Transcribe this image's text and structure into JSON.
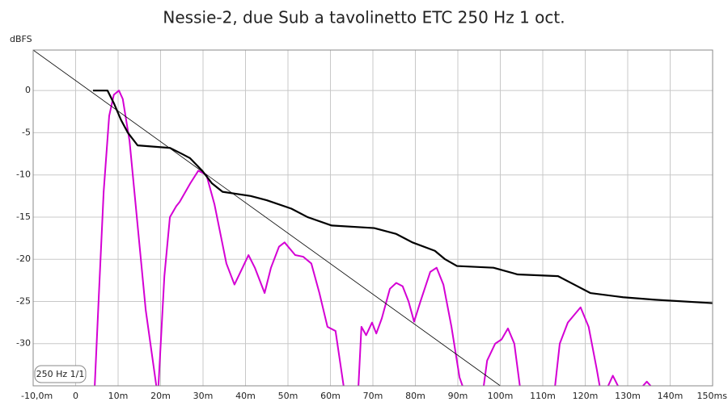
{
  "chart_data": {
    "type": "line",
    "title": "Nessie-2, due Sub a tavolinetto ETC 250 Hz 1 oct.",
    "y_label": "dBFS",
    "annotation": "250 Hz 1/1",
    "xlim": [
      -10,
      150
    ],
    "ylim": [
      -35,
      4.8
    ],
    "xticks": [
      {
        "value": -10,
        "label": "-10,0m"
      },
      0,
      {
        "value": 10,
        "label": "10m"
      },
      {
        "value": 20,
        "label": "20m"
      },
      {
        "value": 30,
        "label": "30m"
      },
      {
        "value": 40,
        "label": "40m"
      },
      {
        "value": 50,
        "label": "50m"
      },
      {
        "value": 60,
        "label": "60m"
      },
      {
        "value": 70,
        "label": "70m"
      },
      {
        "value": 80,
        "label": "80m"
      },
      {
        "value": 90,
        "label": "90m"
      },
      {
        "value": 100,
        "label": "100m"
      },
      {
        "value": 110,
        "label": "110m"
      },
      {
        "value": 120,
        "label": "120m"
      },
      {
        "value": 130,
        "label": "130m"
      },
      {
        "value": 140,
        "label": "140m"
      },
      {
        "value": 150,
        "label": "150ms"
      }
    ],
    "yticks": [
      0,
      -5,
      -10,
      -15,
      -20,
      -25,
      -30
    ],
    "grid": true,
    "series": [
      {
        "color": "#d400d4",
        "line_width": 2,
        "x": [
          4.5,
          5.4,
          6.6,
          7.9,
          9.0,
          10.2,
          11.1,
          12.7,
          14.6,
          16.5,
          19.0,
          null,
          19.5,
          20.9,
          22.2,
          23.7,
          24.5,
          27.0,
          28.9,
          30.8,
          32.7,
          35.5,
          37.4,
          39.3,
          40.7,
          42.2,
          44.5,
          46.0,
          47.9,
          49.2,
          51.7,
          53.6,
          55.5,
          57.4,
          59.3,
          61.2,
          63.1,
          null,
          66.6,
          67.3,
          68.4,
          69.8,
          70.8,
          72.1,
          74.0,
          75.5,
          77.0,
          78.4,
          79.7,
          81.2,
          83.5,
          85.0,
          86.6,
          88.5,
          90.4,
          91.1,
          null,
          96.1,
          96.9,
          98.8,
          100.3,
          101.8,
          103.3,
          104.6,
          null,
          112.9,
          114.0,
          115.9,
          118.9,
          120.8,
          122.7,
          123.4,
          null,
          125.4,
          126.5,
          127.7,
          null,
          133.6,
          134.5,
          135.4
        ],
        "values": [
          -35,
          -25,
          -12,
          -3,
          -0.5,
          0,
          -1,
          -6,
          -16,
          -26,
          -35,
          null,
          -35,
          -22,
          -15,
          -13.7,
          -13.2,
          -11,
          -9.5,
          -10,
          -13.5,
          -20.5,
          -23,
          -21,
          -19.5,
          -21,
          -24,
          -21,
          -18.5,
          -18,
          -19.5,
          -19.7,
          -20.5,
          -24,
          -28,
          -28.5,
          -35,
          null,
          -35,
          -28,
          -29,
          -27.5,
          -28.8,
          -27,
          -23.5,
          -22.8,
          -23.2,
          -25,
          -27.4,
          -25,
          -21.5,
          -21,
          -23,
          -28,
          -34,
          -35,
          null,
          -35,
          -32,
          -30,
          -29.5,
          -28.2,
          -30,
          -35,
          null,
          -35,
          -30,
          -27.5,
          -25.7,
          -28,
          -33,
          -35,
          null,
          -35,
          -33.8,
          -35,
          null,
          -35,
          -34.5,
          -35
        ]
      },
      {
        "color": "#000000",
        "line_width": 2.2,
        "x": [
          4.1,
          7.5,
          9.0,
          10.7,
          12.3,
          14.6,
          22.2,
          25.0,
          26.9,
          29.8,
          32.1,
          34.6,
          41.2,
          45.0,
          50.8,
          54.6,
          60.3,
          70.3,
          75.5,
          79.3,
          84.6,
          87.0,
          89.8,
          98.4,
          104.1,
          113.6,
          117.4,
          121.2,
          128.9,
          136.5,
          150.0
        ],
        "values": [
          0,
          0,
          -1.5,
          -3.5,
          -5,
          -6.5,
          -6.8,
          -7.5,
          -8,
          -9.5,
          -11,
          -12,
          -12.5,
          -13,
          -14,
          -15,
          -16,
          -16.3,
          -17,
          -18,
          -19,
          -20,
          -20.8,
          -21,
          -21.8,
          -22,
          -23,
          -24,
          -24.5,
          -24.8,
          -25.2
        ]
      },
      {
        "color": "#000000",
        "line_width": 0.8,
        "x": [
          -10,
          100
        ],
        "values": [
          4.8,
          -35
        ]
      }
    ]
  }
}
